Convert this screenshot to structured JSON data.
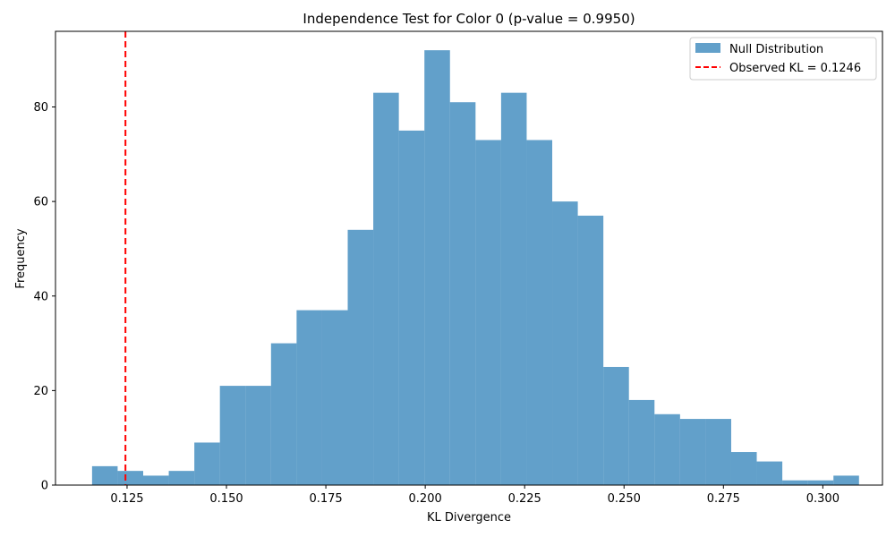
{
  "chart_data": {
    "type": "bar",
    "title": "Independence Test for Color 0 (p-value = 0.9950)",
    "xlabel": "KL Divergence",
    "ylabel": "Frequency",
    "xlim": [
      0.107,
      0.315
    ],
    "ylim": [
      0,
      96
    ],
    "x_ticks": [
      0.125,
      0.15,
      0.175,
      0.2,
      0.225,
      0.25,
      0.275,
      0.3
    ],
    "x_tick_labels": [
      "0.125",
      "0.150",
      "0.175",
      "0.200",
      "0.225",
      "0.250",
      "0.275",
      "0.300"
    ],
    "y_ticks": [
      0,
      20,
      40,
      60,
      80
    ],
    "y_tick_labels": [
      "0",
      "20",
      "40",
      "60",
      "80"
    ],
    "bin_start": 0.1162,
    "bin_width": 0.00643,
    "series": [
      {
        "name": "Null Distribution",
        "color": "#1f77b4",
        "opacity": 0.7,
        "values": [
          4,
          3,
          2,
          3,
          9,
          21,
          21,
          30,
          37,
          37,
          54,
          83,
          75,
          92,
          81,
          73,
          83,
          73,
          60,
          57,
          25,
          18,
          15,
          14,
          14,
          7,
          5,
          1,
          1,
          2
        ]
      }
    ],
    "reference_line": {
      "label": "Observed KL = 0.1246",
      "x": 0.1246,
      "color": "#ff0000",
      "style": "dashed"
    },
    "legend": {
      "position": "top-right",
      "entries": [
        "Null Distribution",
        "Observed KL = 0.1246"
      ]
    },
    "grid": false
  }
}
